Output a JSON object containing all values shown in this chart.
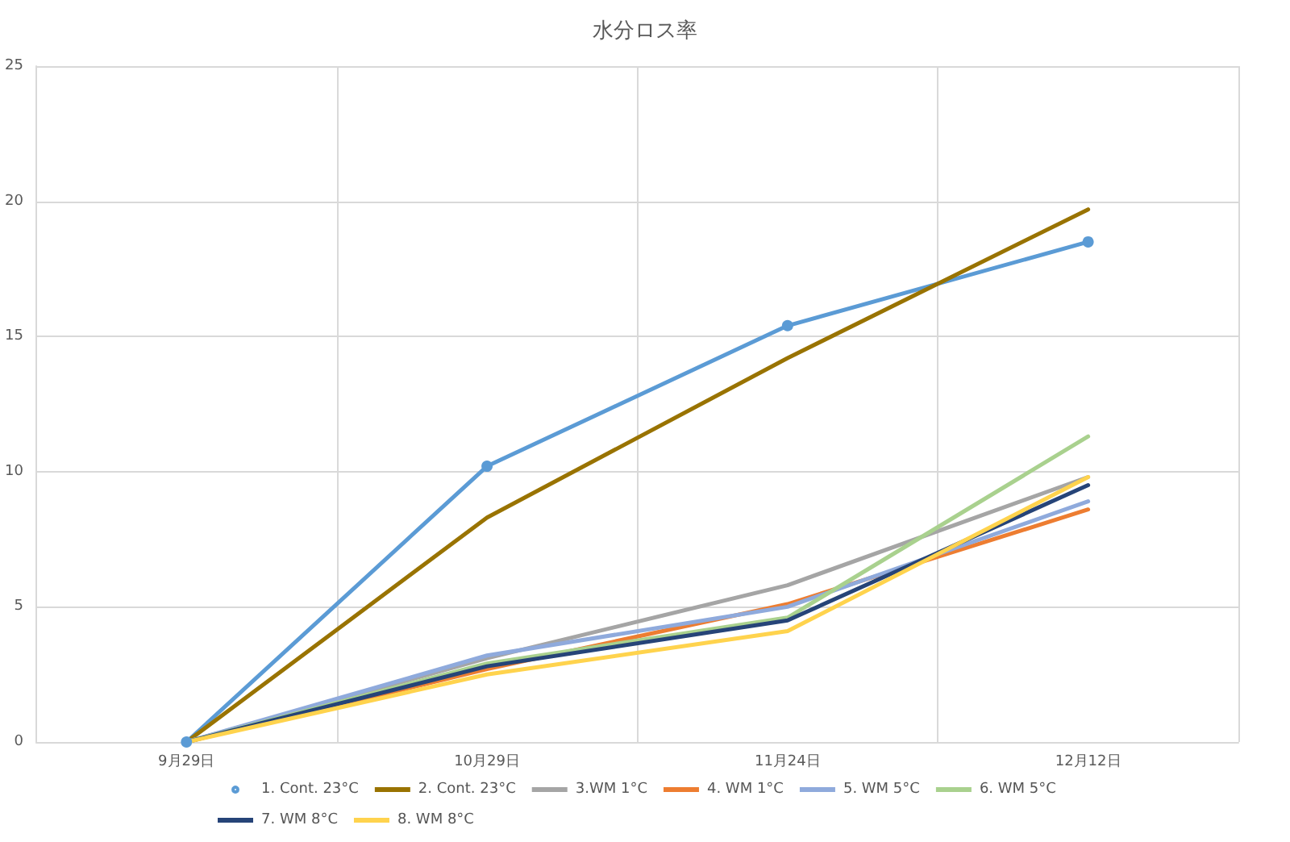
{
  "chart_data": {
    "type": "line",
    "title": "水分ロス率",
    "categories": [
      "9月29日",
      "10月29日",
      "11月24日",
      "12月12日"
    ],
    "ylim": [
      0,
      25
    ],
    "yticks": [
      0,
      5,
      10,
      15,
      20,
      25
    ],
    "grid": true,
    "legend": "bottom",
    "line_style": "solid",
    "series": [
      {
        "name": "1. Cont. 23°C",
        "color": "#5b9bd5",
        "marker": "circle",
        "values": [
          0,
          10.2,
          15.4,
          18.5
        ]
      },
      {
        "name": "2. Cont. 23°C",
        "color": "#997300",
        "marker": "none",
        "values": [
          0,
          8.3,
          14.2,
          19.7
        ]
      },
      {
        "name": "3.WM 1°C",
        "color": "#a5a5a5",
        "marker": "none",
        "values": [
          0,
          3.1,
          5.8,
          9.8
        ]
      },
      {
        "name": "4. WM 1°C",
        "color": "#ed7d31",
        "marker": "none",
        "values": [
          0,
          2.7,
          5.1,
          8.6
        ]
      },
      {
        "name": "5. WM 5°C",
        "color": "#8faadc",
        "marker": "none",
        "values": [
          0,
          3.2,
          5.0,
          8.9
        ]
      },
      {
        "name": "6. WM 5°C",
        "color": "#a9d18e",
        "marker": "none",
        "values": [
          0,
          2.9,
          4.6,
          11.3
        ]
      },
      {
        "name": "7. WM 8°C",
        "color": "#264478",
        "marker": "none",
        "values": [
          0,
          2.8,
          4.5,
          9.5
        ]
      },
      {
        "name": "8. WM 8°C",
        "color": "#ffd34d",
        "marker": "none",
        "values": [
          0,
          2.5,
          4.1,
          9.8
        ]
      }
    ]
  }
}
